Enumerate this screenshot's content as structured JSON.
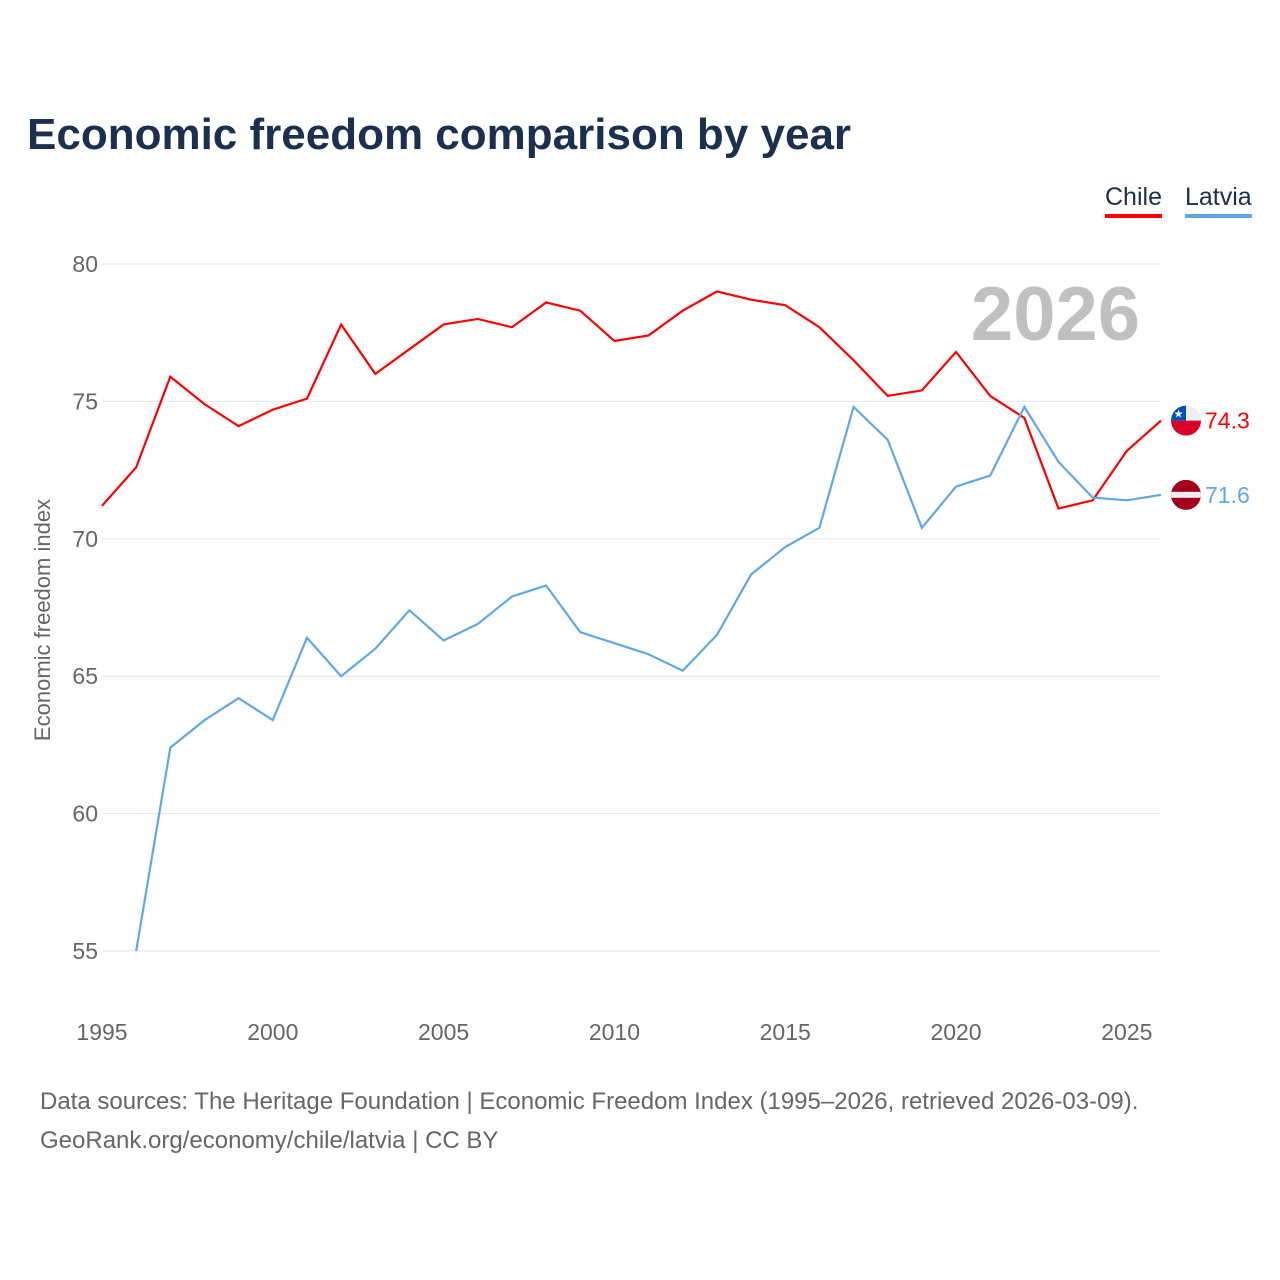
{
  "title": "Economic freedom comparison by year",
  "year_watermark": "2026",
  "footer": {
    "line1": "Data sources: The Heritage Foundation | Economic Freedom Index (1995–2026, retrieved 2026-03-09).",
    "line2": "GeoRank.org/economy/chile/latvia | CC BY"
  },
  "chart_data": {
    "type": "line",
    "title": "Economic freedom comparison by year",
    "xlabel": "",
    "ylabel": "Economic freedom index",
    "xlim": [
      1995,
      2026
    ],
    "ylim": [
      55,
      80
    ],
    "xticks": [
      1995,
      2000,
      2005,
      2010,
      2015,
      2020,
      2025
    ],
    "yticks": [
      55,
      60,
      65,
      70,
      75,
      80
    ],
    "grid": true,
    "legend": "top-right",
    "series": [
      {
        "name": "Chile",
        "color": "#ff0000",
        "end_label": "74.3",
        "flag": "chile-flag",
        "x": [
          1995,
          1996,
          1997,
          1998,
          1999,
          2000,
          2001,
          2002,
          2003,
          2004,
          2005,
          2006,
          2007,
          2008,
          2009,
          2010,
          2011,
          2012,
          2013,
          2014,
          2015,
          2016,
          2017,
          2018,
          2019,
          2020,
          2021,
          2022,
          2023,
          2024,
          2025,
          2026
        ],
        "values": [
          71.2,
          72.6,
          75.9,
          74.9,
          74.1,
          74.7,
          75.1,
          77.8,
          76.0,
          76.9,
          77.8,
          78.0,
          77.7,
          78.6,
          78.3,
          77.2,
          77.4,
          78.3,
          79.0,
          78.7,
          78.5,
          77.7,
          76.5,
          75.2,
          75.4,
          76.8,
          75.2,
          74.4,
          71.1,
          71.4,
          73.2,
          74.3
        ]
      },
      {
        "name": "Latvia",
        "color": "#5fa8e8",
        "end_label": "71.6",
        "flag": "latvia-flag",
        "x": [
          1996,
          1997,
          1998,
          1999,
          2000,
          2001,
          2002,
          2003,
          2004,
          2005,
          2006,
          2007,
          2008,
          2009,
          2010,
          2011,
          2012,
          2013,
          2014,
          2015,
          2016,
          2017,
          2018,
          2019,
          2020,
          2021,
          2022,
          2023,
          2024,
          2025,
          2026
        ],
        "values": [
          55.0,
          62.4,
          63.4,
          64.2,
          63.4,
          66.4,
          65.0,
          66.0,
          67.4,
          66.3,
          66.9,
          67.9,
          68.3,
          66.6,
          66.2,
          65.8,
          65.2,
          66.5,
          68.7,
          69.7,
          70.4,
          74.8,
          73.6,
          70.4,
          71.9,
          72.3,
          74.8,
          72.8,
          71.5,
          71.4,
          71.6
        ]
      }
    ]
  }
}
